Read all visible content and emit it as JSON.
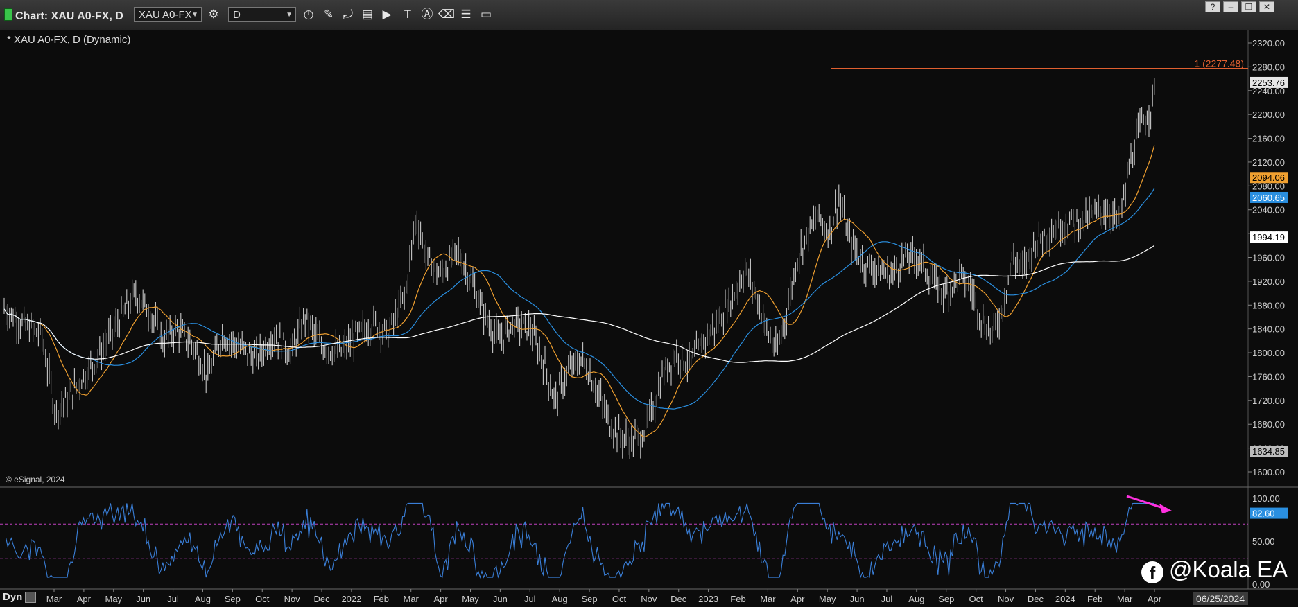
{
  "window": {
    "title": "Chart: XAU A0-FX, D",
    "symbol_value": "XAU A0-FX",
    "interval_value": "D",
    "buttons": [
      "?",
      "–",
      "❐",
      "✕"
    ]
  },
  "toolbar_icons": [
    "settings-gear-icon",
    "clock-icon",
    "pen-draw-icon",
    "line-tool-icon",
    "data-table-icon",
    "play-icon",
    "text-tool-icon",
    "alert-icon",
    "eraser-icon",
    "layout-icon",
    "comment-icon"
  ],
  "chart_label": "* XAU A0-FX, D (Dynamic)",
  "copyright": "© eSignal, 2024",
  "watermark": "@Koala EA",
  "footer": {
    "mode": "Dyn",
    "date_box": "06/25/2024"
  },
  "price_axis": {
    "ticks": [
      "2320.00",
      "2280.00",
      "2240.00",
      "2200.00",
      "2160.00",
      "2120.00",
      "2080.00",
      "2040.00",
      "2000.00",
      "1960.00",
      "1920.00",
      "1880.00",
      "1840.00",
      "1800.00",
      "1760.00",
      "1720.00",
      "1680.00",
      "1640.00",
      "1600.00"
    ],
    "badges": [
      {
        "label": "2253.76",
        "value": 2253.76,
        "bg": "#e6e6e6",
        "fg": "#000000"
      },
      {
        "label": "2094.06",
        "value": 2094.06,
        "bg": "#f0a030",
        "fg": "#000000"
      },
      {
        "label": "2060.65",
        "value": 2060.65,
        "bg": "#2a8fe0",
        "fg": "#ffffff"
      },
      {
        "label": "1994.19",
        "value": 1994.19,
        "bg": "#ffffff",
        "fg": "#000000"
      },
      {
        "label": "1634.85",
        "value": 1634.85,
        "bg": "#bdbdbd",
        "fg": "#000000"
      }
    ],
    "hline_label": "1 (2277.48)",
    "hline_value": 2277.48
  },
  "osc_axis": {
    "ticks": [
      "100.00",
      "50.00",
      "0.00"
    ],
    "badge": "82.60",
    "badge_value": 82.6,
    "levels": [
      70,
      30
    ]
  },
  "time_axis": [
    "Mar",
    "Apr",
    "May",
    "Jun",
    "Jul",
    "Aug",
    "Sep",
    "Oct",
    "Nov",
    "Dec",
    "2022",
    "Feb",
    "Mar",
    "Apr",
    "May",
    "Jun",
    "Jul",
    "Aug",
    "Sep",
    "Oct",
    "Nov",
    "Dec",
    "2023",
    "Feb",
    "Mar",
    "Apr",
    "May",
    "Jun",
    "Jul",
    "Aug",
    "Sep",
    "Oct",
    "Nov",
    "Dec",
    "2024",
    "Feb",
    "Mar",
    "Apr"
  ],
  "colors": {
    "price_bars": "#c8c8c8",
    "ma_fast": "#f0a030",
    "ma_mid": "#2a8fe0",
    "ma_slow": "#ffffff",
    "oscillator": "#3a7fd8",
    "levels": "#c040c0",
    "hline": "#e06030",
    "arrow": "#ff30e0"
  },
  "chart_data": {
    "type": "line",
    "title": "XAU A0-FX, D (Dynamic)",
    "ylim": [
      1600,
      2320
    ],
    "series": [
      {
        "name": "Price",
        "x": [
          "Feb 2021",
          "Jun 2021",
          "Aug 2021",
          "Nov 2021",
          "Mar 2022",
          "Jun 2022",
          "Sep 2022",
          "Nov 2022",
          "Dec 2022",
          "Apr 2023",
          "Jun 2023",
          "Oct 2023",
          "Dec 2023",
          "Feb 2024",
          "Mar 2024",
          "Apr 2024"
        ],
        "values": [
          1820,
          1880,
          1760,
          1850,
          2050,
          1840,
          1660,
          1640,
          1800,
          2000,
          1920,
          1820,
          2050,
          2000,
          2180,
          2253.76
        ]
      }
    ],
    "current_price": 2253.76,
    "ma_values": {
      "orange": 2094.06,
      "blue": 2060.65,
      "white": 1994.19
    },
    "horizontal_line": 2277.48,
    "oscillator_last": 82.6
  }
}
